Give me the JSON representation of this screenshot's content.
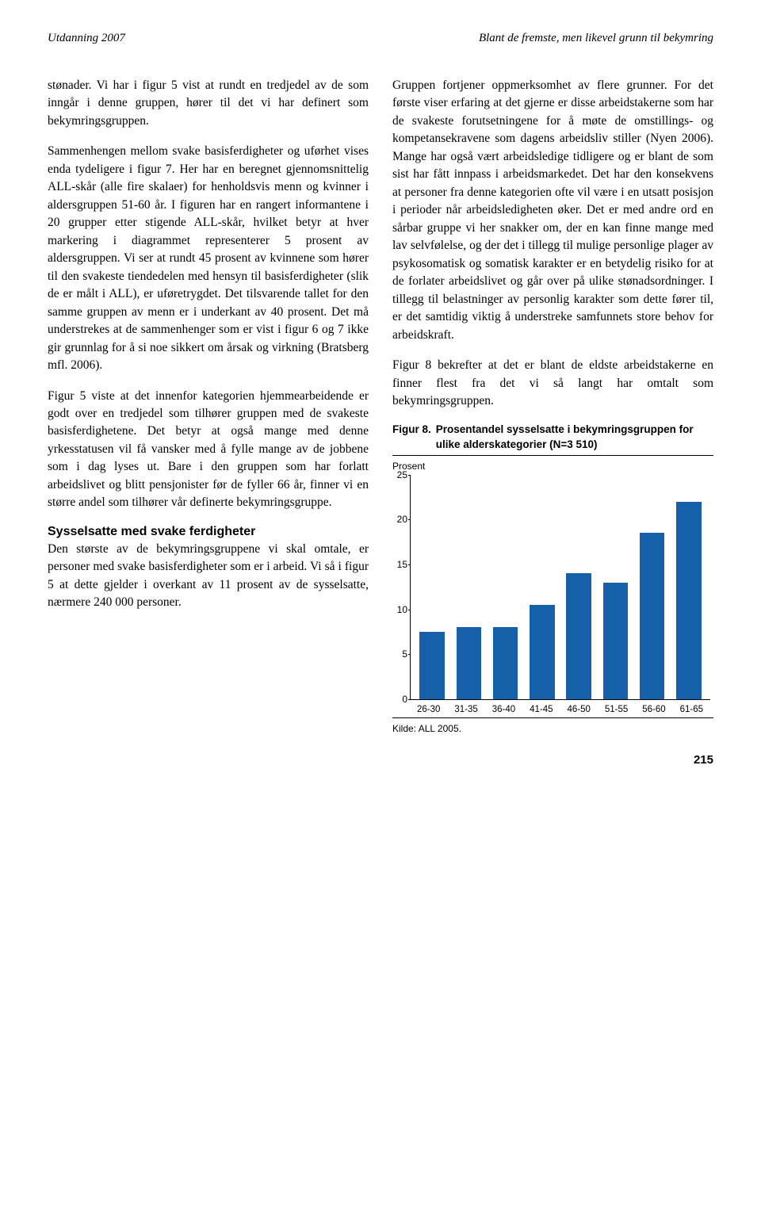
{
  "header": {
    "left": "Utdanning 2007",
    "right": "Blant de fremste, men likevel grunn til bekymring"
  },
  "left_col": {
    "p1": "stønader. Vi har i figur 5 vist at rundt en tredjedel av de som inngår i denne gruppen, hører til det vi har definert som bekymringsgruppen.",
    "p2": "Sammenhengen mellom svake basisferdigheter og uførhet vises enda tydeligere i figur 7. Her har en beregnet gjennomsnittelig ALL-skår (alle fire skalaer) for henholdsvis menn og kvinner i aldersgruppen 51-60 år. I figuren har en rangert informantene i 20 grupper etter stigende ALL-skår, hvilket betyr at hver markering i diagrammet representerer 5 prosent av aldersgruppen. Vi ser at rundt 45 prosent av kvinnene som hører til den svakeste tiendedelen med hensyn til basisferdigheter (slik de er målt i ALL), er uføretrygdet. Det tilsvarende tallet for den samme gruppen av menn er i underkant av 40 prosent. Det må understrekes at de sammenhenger som er vist i figur 6 og 7 ikke gir grunnlag for å si noe sikkert om årsak og virkning (Bratsberg mfl. 2006).",
    "p3": "Figur 5 viste at det innenfor kategorien hjemmearbeidende er godt over en tredjedel som tilhører gruppen med de svakeste basisferdighetene. Det betyr at også mange med denne yrkesstatusen vil få vansker med å fylle mange av de jobbene som i dag lyses ut. Bare i den gruppen som har forlatt arbeidslivet og blitt pensjonister før de fyller 66 år, finner vi en større andel som tilhører vår definerte bekymringsgruppe.",
    "h1": "Sysselsatte med svake ferdigheter",
    "p4": "Den største av de bekymringsgruppene vi skal omtale, er personer med svake basisferdigheter som er i arbeid. Vi så i figur 5 at dette gjelder i overkant av 11 prosent av de sysselsatte, nærmere 240 000 personer."
  },
  "right_col": {
    "p1": "Gruppen fortjener oppmerksomhet av flere grunner. For det første viser erfaring at det gjerne er disse arbeidstakerne som har de svakeste forutsetningene for å møte de omstillings- og kompetansekravene som dagens arbeidsliv stiller (Nyen 2006). Mange har også vært arbeidsledige tidligere og er blant de som sist har fått innpass i arbeidsmarkedet. Det har den konsekvens at personer fra denne kategorien ofte vil være i en utsatt posisjon i perioder når arbeidsledigheten øker. Det er med andre ord en sårbar gruppe vi her snakker om, der en kan finne mange med lav selvfølelse, og der det i tillegg til mulige personlige plager av psykosomatisk og somatisk karakter er en betydelig risiko for at de forlater arbeidslivet og går over på ulike stønadsordninger. I tillegg til belastninger av personlig karakter som dette fører til, er det samtidig viktig å understreke samfunnets store behov for arbeidskraft.",
    "p2": "Figur 8 bekrefter at det er blant de eldste arbeidstakerne en finner flest fra det vi så langt har omtalt som bekymringsgruppen."
  },
  "figure": {
    "label": "Figur 8.",
    "title": "Prosentandel sysselsatte i bekymringsgruppen for ulike alderskategorier (N=3 510)",
    "y_axis_label": "Prosent",
    "categories": [
      "26-30",
      "31-35",
      "36-40",
      "41-45",
      "46-50",
      "51-55",
      "56-60",
      "61-65"
    ],
    "values": [
      7.5,
      8,
      8,
      10.5,
      14,
      13,
      18.5,
      22
    ],
    "bar_color": "#1560a8",
    "ylim": [
      0,
      25
    ],
    "ytick_step": 5,
    "background": "#ffffff",
    "source": "Kilde: ALL 2005."
  },
  "page_number": "215"
}
